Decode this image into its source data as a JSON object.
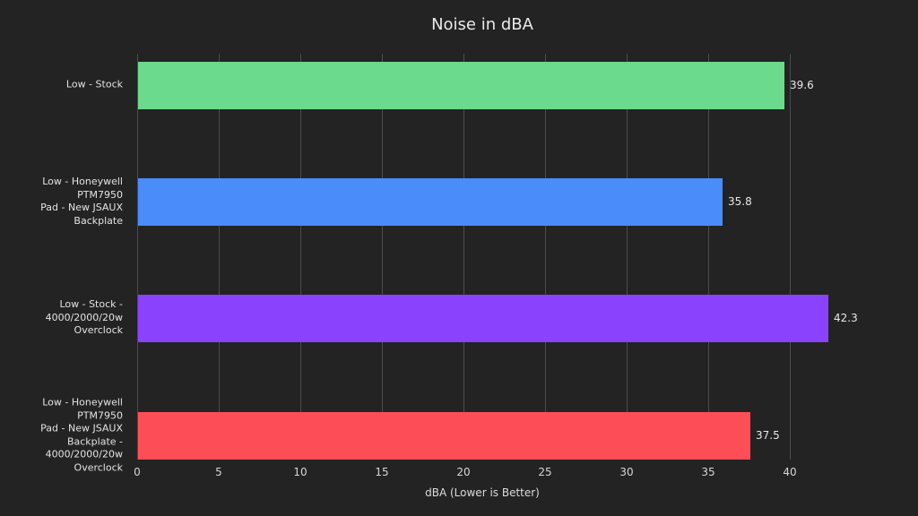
{
  "chart_data": {
    "type": "bar",
    "orientation": "horizontal",
    "title": "Noise in dBA",
    "xlabel": "dBA (Lower is Better)",
    "ylabel": "",
    "categories": [
      "Low - Stock",
      "Low - Honeywell PTM7950\nPad - New JSAUX\nBackplate",
      "Low - Stock -\n4000/2000/20w Overclock",
      "Low - Honeywell PTM7950\nPad - New JSAUX\nBackplate -\n4000/2000/20w Overclock"
    ],
    "values": [
      39.6,
      35.8,
      42.3,
      37.5
    ],
    "value_labels": [
      "39.6",
      "35.8",
      "42.3",
      "37.5"
    ],
    "bar_colors": [
      "#6bda8c",
      "#4a8cfa",
      "#8b42fc",
      "#fd4e57"
    ],
    "xlim": [
      0,
      42.3
    ],
    "xticks": [
      0,
      5,
      10,
      15,
      20,
      25,
      30,
      35,
      40
    ],
    "grid": true,
    "legend": false,
    "background_color": "#232323",
    "gridline_color": "#4d4d4d",
    "text_color": "#e8e8e8"
  }
}
